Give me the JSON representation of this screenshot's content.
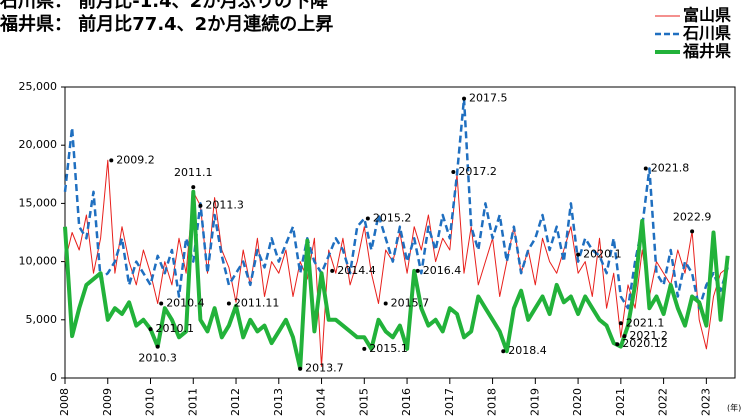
{
  "chart_data": {
    "type": "line",
    "subtitle": "石川県： 前月比-1.4、2か月ぶりの下降",
    "title": "福井県： 前月比77.4、2か月連続の上昇",
    "x_unit": "(年)",
    "x": [
      2008,
      2008.167,
      2008.333,
      2008.5,
      2008.667,
      2008.833,
      2009,
      2009.167,
      2009.333,
      2009.5,
      2009.667,
      2009.833,
      2010,
      2010.167,
      2010.333,
      2010.5,
      2010.667,
      2010.833,
      2011,
      2011.167,
      2011.333,
      2011.5,
      2011.667,
      2011.833,
      2012,
      2012.167,
      2012.333,
      2012.5,
      2012.667,
      2012.833,
      2013,
      2013.167,
      2013.333,
      2013.5,
      2013.667,
      2013.833,
      2014,
      2014.167,
      2014.333,
      2014.5,
      2014.667,
      2014.833,
      2015,
      2015.167,
      2015.333,
      2015.5,
      2015.667,
      2015.833,
      2016,
      2016.167,
      2016.333,
      2016.5,
      2016.667,
      2016.833,
      2017,
      2017.167,
      2017.333,
      2017.5,
      2017.667,
      2017.833,
      2018,
      2018.167,
      2018.333,
      2018.5,
      2018.667,
      2018.833,
      2019,
      2019.167,
      2019.333,
      2019.5,
      2019.667,
      2019.833,
      2020,
      2020.167,
      2020.333,
      2020.5,
      2020.667,
      2020.833,
      2021,
      2021.167,
      2021.333,
      2021.5,
      2021.667,
      2021.833,
      2022,
      2022.167,
      2022.333,
      2022.5,
      2022.667,
      2022.833,
      2023,
      2023.167,
      2023.333,
      2023.5
    ],
    "series": [
      {
        "name": "富山県",
        "color": "#e8201c",
        "width": 1,
        "dashed": false,
        "values": [
          10000,
          12500,
          11000,
          14000,
          9000,
          12000,
          18700,
          9000,
          13000,
          10000,
          8000,
          11000,
          9000,
          6400,
          10000,
          8000,
          12000,
          9000,
          16000,
          14800,
          9000,
          15500,
          11000,
          9500,
          6500,
          11000,
          8000,
          12000,
          7000,
          10000,
          9000,
          11000,
          7000,
          10000,
          8500,
          12000,
          1000,
          11000,
          9000,
          12000,
          8000,
          10000,
          13000,
          9000,
          6400,
          11000,
          10000,
          12500,
          9000,
          13000,
          11000,
          14000,
          10000,
          12000,
          11000,
          17500,
          9000,
          13000,
          8000,
          10000,
          12000,
          7000,
          10000,
          13000,
          9000,
          11000,
          8000,
          12000,
          10000,
          9000,
          11000,
          13000,
          9000,
          10000,
          7000,
          12000,
          6000,
          9000,
          3500,
          8000,
          6000,
          11000,
          7000,
          10000,
          9000,
          8000,
          11000,
          9000,
          12600,
          5000,
          2500,
          7000,
          9000,
          9500
        ]
      },
      {
        "name": "石川県",
        "color": "#1f6fc0",
        "width": 2.5,
        "dashed": true,
        "values": [
          16000,
          21500,
          13000,
          12000,
          16000,
          8500,
          9000,
          10000,
          12000,
          8000,
          10000,
          9000,
          8000,
          10500,
          9000,
          11000,
          7000,
          12000,
          10000,
          15000,
          9000,
          14000,
          10500,
          8000,
          9000,
          10000,
          8000,
          11000,
          9500,
          12000,
          10000,
          11500,
          13000,
          9000,
          12000,
          10000,
          9000,
          10500,
          12000,
          11000,
          9000,
          13000,
          13700,
          11000,
          14000,
          12000,
          10000,
          13000,
          10000,
          12000,
          9000,
          13000,
          11000,
          14000,
          12000,
          17500,
          24000,
          13000,
          11000,
          15000,
          12000,
          14000,
          10000,
          13000,
          9000,
          11000,
          12000,
          14000,
          11000,
          13000,
          10000,
          15000,
          10000,
          12000,
          11000,
          10500,
          9000,
          12000,
          7000,
          6000,
          10000,
          13000,
          18000,
          9000,
          8000,
          11000,
          7000,
          10000,
          9000,
          6000,
          8000,
          9000,
          7500,
          9500
        ]
      },
      {
        "name": "福井県",
        "color": "#22b23a",
        "width": 4,
        "dashed": false,
        "values": [
          13000,
          3600,
          6000,
          8000,
          8500,
          9000,
          5000,
          6000,
          5500,
          6500,
          4500,
          5000,
          4200,
          2700,
          6000,
          5000,
          3500,
          4000,
          16000,
          5000,
          4000,
          6000,
          3500,
          4500,
          6200,
          3500,
          5000,
          4000,
          4500,
          3000,
          4000,
          5000,
          3500,
          800,
          11800,
          4000,
          9000,
          5000,
          5000,
          4500,
          4000,
          3500,
          3500,
          2500,
          5000,
          4000,
          3500,
          4500,
          2500,
          9200,
          6000,
          4500,
          5000,
          4000,
          6000,
          5500,
          3500,
          4000,
          7000,
          6000,
          5000,
          4000,
          2300,
          6000,
          7500,
          5000,
          6000,
          7000,
          5500,
          8000,
          6500,
          7000,
          5500,
          7000,
          6000,
          5000,
          4500,
          3000,
          2700,
          4500,
          8000,
          13500,
          6000,
          7000,
          5500,
          8000,
          6000,
          4500,
          7000,
          6500,
          4500,
          12500,
          5000,
          10500
        ]
      }
    ],
    "annotations": [
      {
        "text": "2009.2",
        "x": 2009.083,
        "y": 18700
      },
      {
        "text": "2011.1",
        "x": 2011.0,
        "y": 16400
      },
      {
        "text": "2011.3",
        "x": 2011.167,
        "y": 14800
      },
      {
        "text": "2017.5",
        "x": 2017.333,
        "y": 24000
      },
      {
        "text": "2017.2",
        "x": 2017.083,
        "y": 17700
      },
      {
        "text": "2021.8",
        "x": 2021.583,
        "y": 18000
      },
      {
        "text": "2022.9",
        "x": 2022.667,
        "y": 12600
      },
      {
        "text": "2015.2",
        "x": 2015.083,
        "y": 13700
      },
      {
        "text": "2014.4",
        "x": 2014.25,
        "y": 9200
      },
      {
        "text": "2016.4",
        "x": 2016.25,
        "y": 9200
      },
      {
        "text": "2020.1",
        "x": 2020.0,
        "y": 10600
      },
      {
        "text": "2010.4",
        "x": 2010.25,
        "y": 6400
      },
      {
        "text": "2011.11",
        "x": 2011.833,
        "y": 6400
      },
      {
        "text": "2015.7",
        "x": 2015.5,
        "y": 6400
      },
      {
        "text": "2021.1",
        "x": 2021.0,
        "y": 4700
      },
      {
        "text": "2021.2",
        "x": 2021.083,
        "y": 3600
      },
      {
        "text": "2020.12",
        "x": 2020.917,
        "y": 2900
      },
      {
        "text": "2010.1",
        "x": 2010.0,
        "y": 4200
      },
      {
        "text": "2010.3",
        "x": 2010.167,
        "y": 2700
      },
      {
        "text": "2013.7",
        "x": 2013.5,
        "y": 800
      },
      {
        "text": "2015.1",
        "x": 2015.0,
        "y": 2500
      },
      {
        "text": "2018.4",
        "x": 2018.25,
        "y": 2300
      }
    ],
    "xlim": [
      2008,
      2023.67
    ],
    "xticks": [
      2008,
      2009,
      2010,
      2011,
      2012,
      2013,
      2014,
      2015,
      2016,
      2017,
      2018,
      2019,
      2020,
      2021,
      2022,
      2023
    ],
    "ylim": [
      0,
      25000
    ],
    "yticks": [
      0,
      {
        "value": 5000,
        "label": "5,000"
      },
      {
        "value": 10000,
        "label": "10,000"
      },
      {
        "value": 15000,
        "label": "15,000"
      },
      {
        "value": 20000,
        "label": "20,000"
      },
      {
        "value": 25000,
        "label": "25,000"
      }
    ]
  }
}
